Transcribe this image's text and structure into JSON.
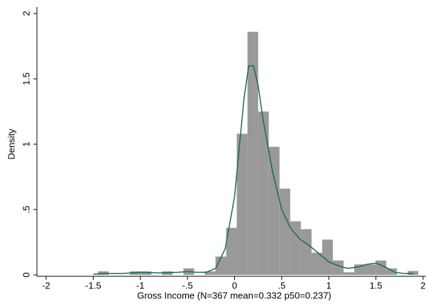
{
  "chart_data": {
    "type": "histogram",
    "xlabel": "Gross Income (N=367 mean=0.332 p50=0.237)",
    "ylabel": "Density",
    "bins": [
      -1.45,
      -1.337,
      -1.223,
      -1.11,
      -0.997,
      -0.883,
      -0.77,
      -0.657,
      -0.543,
      -0.43,
      -0.317,
      -0.203,
      -0.09,
      0.023,
      0.137,
      0.25,
      0.363,
      0.477,
      0.59,
      0.703,
      0.817,
      0.93,
      1.043,
      1.157,
      1.27,
      1.383,
      1.497,
      1.61,
      1.723,
      1.837,
      1.95
    ],
    "values": [
      0.027,
      0,
      0,
      0.027,
      0.027,
      0,
      0.027,
      0,
      0.05,
      0,
      0.027,
      0.14,
      0.36,
      1.08,
      1.86,
      1.25,
      0.98,
      0.66,
      0.41,
      0.35,
      0.17,
      0.27,
      0.11,
      0.02,
      0.08,
      0.08,
      0.11,
      0.05,
      0,
      0.03
    ],
    "color": "#999999",
    "density": {
      "color": "#1a6b5a",
      "x": [
        -1.5,
        -1.4,
        -1.2,
        -1.0,
        -0.8,
        -0.6,
        -0.5,
        -0.4,
        -0.3,
        -0.2,
        -0.1,
        0,
        0.1,
        0.15,
        0.2,
        0.25,
        0.3,
        0.4,
        0.5,
        0.6,
        0.7,
        0.8,
        0.9,
        1.0,
        1.1,
        1.2,
        1.3,
        1.4,
        1.5,
        1.6,
        1.7,
        1.8,
        1.9
      ],
      "y": [
        0.005,
        0.01,
        0.01,
        0.02,
        0.015,
        0.02,
        0.025,
        0.02,
        0.02,
        0.05,
        0.2,
        0.6,
        1.35,
        1.6,
        1.6,
        1.45,
        1.2,
        0.8,
        0.5,
        0.35,
        0.27,
        0.22,
        0.16,
        0.1,
        0.07,
        0.05,
        0.06,
        0.08,
        0.09,
        0.06,
        0.02,
        0.01,
        0.01
      ]
    },
    "xlim": [
      -2,
      2
    ],
    "ylim": [
      0,
      2
    ],
    "xticks": [
      -2,
      -1.5,
      -1,
      {
        "value": -0.5,
        "label": "-.5"
      },
      0,
      {
        "value": 0.5,
        "label": ".5"
      },
      1,
      1.5,
      2
    ],
    "yticks": [
      0,
      {
        "value": 0.5,
        "label": ".5"
      },
      1,
      1.5,
      2
    ]
  }
}
